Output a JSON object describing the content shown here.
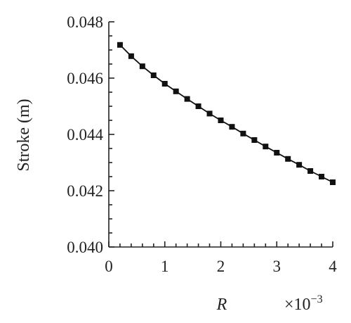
{
  "chart_data": {
    "type": "line",
    "title": "",
    "xlabel": "R",
    "x_multiplier": "×10",
    "x_multiplier_exponent": "−3",
    "ylabel": "Stroke (m)",
    "xlim": [
      0,
      4
    ],
    "ylim": [
      0.04,
      0.048
    ],
    "x_ticks": [
      "0",
      "1",
      "2",
      "3",
      "4"
    ],
    "y_ticks": [
      "0.040",
      "0.042",
      "0.044",
      "0.046",
      "0.048"
    ],
    "grid": false,
    "legend": "none",
    "series": [
      {
        "marker": "square",
        "color": "#111111",
        "x": [
          0.2,
          0.4,
          0.6,
          0.8,
          1.0,
          1.2,
          1.4,
          1.6,
          1.8,
          2.0,
          2.2,
          2.4,
          2.6,
          2.8,
          3.0,
          3.2,
          3.4,
          3.6,
          3.8,
          4.0
        ],
        "values": [
          0.04718,
          0.04678,
          0.04642,
          0.0461,
          0.0458,
          0.04553,
          0.04526,
          0.045,
          0.04474,
          0.0445,
          0.04427,
          0.04403,
          0.0438,
          0.04357,
          0.04335,
          0.04313,
          0.04292,
          0.0427,
          0.0425,
          0.0423
        ]
      }
    ]
  }
}
